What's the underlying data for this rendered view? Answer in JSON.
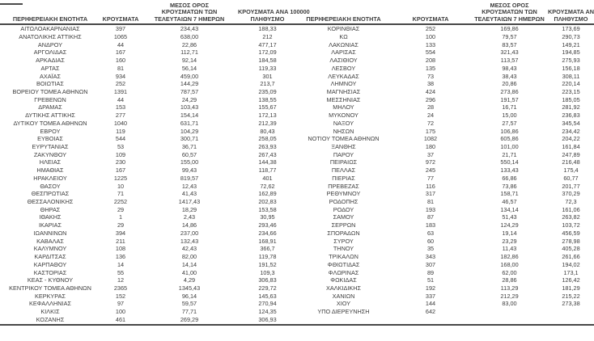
{
  "colors": {
    "text": "#3c3c3c",
    "rule": "#474747",
    "background": "#ffffff"
  },
  "table": {
    "headers": {
      "region": "ΠΕΡΙΦΕΡΕΙΑΚΗ ΕΝΟΤΗΤΑ",
      "cases": "ΚΡΟΥΣΜΑΤΑ",
      "avg7_l1": "ΜΕΣΟΣ ΟΡΟΣ",
      "avg7_l2": "ΚΡΟΥΣΜΑΤΩΝ ΤΩΝ",
      "avg7_l3": "ΤΕΛΕΥΤΑΙΩΝ 7 ΗΜΕΡΩΝ",
      "per100k_l1": "ΚΡΟΥΣΜΑΤΑ ΑΝΑ 100000",
      "per100k_l2": "ΠΛΗΘΥΣΜΟ"
    },
    "left_rows": [
      [
        "ΑΙΤΩΛΟΑΚΑΡΝΑΝΙΑΣ",
        "397",
        "234,43",
        "188,33"
      ],
      [
        "ΑΝΑΤΟΛΙΚΗΣ ΑΤΤΙΚΗΣ",
        "1065",
        "638,00",
        "212"
      ],
      [
        "ΑΝΔΡΟΥ",
        "44",
        "22,86",
        "477,17"
      ],
      [
        "ΑΡΓΟΛΙΔΑΣ",
        "167",
        "112,71",
        "172,09"
      ],
      [
        "ΑΡΚΑΔΙΑΣ",
        "160",
        "92,14",
        "184,58"
      ],
      [
        "ΑΡΤΑΣ",
        "81",
        "56,14",
        "119,33"
      ],
      [
        "ΑΧΑΪΑΣ",
        "934",
        "459,00",
        "301"
      ],
      [
        "ΒΟΙΩΤΙΑΣ",
        "252",
        "144,29",
        "213,7"
      ],
      [
        "ΒΟΡΕΙΟΥ ΤΟΜΕΑ ΑΘΗΝΩΝ",
        "1391",
        "787,57",
        "235,09"
      ],
      [
        "ΓΡΕΒΕΝΩΝ",
        "44",
        "24,29",
        "138,55"
      ],
      [
        "ΔΡΑΜΑΣ",
        "153",
        "103,43",
        "155,67"
      ],
      [
        "ΔΥΤΙΚΗΣ ΑΤΤΙΚΗΣ",
        "277",
        "154,14",
        "172,13"
      ],
      [
        "ΔΥΤΙΚΟΥ ΤΟΜΕΑ ΑΘΗΝΩΝ",
        "1040",
        "631,71",
        "212,39"
      ],
      [
        "ΕΒΡΟΥ",
        "119",
        "104,29",
        "80,43"
      ],
      [
        "ΕΥΒΟΙΑΣ",
        "544",
        "300,71",
        "258,05"
      ],
      [
        "ΕΥΡΥΤΑΝΙΑΣ",
        "53",
        "36,71",
        "263,93"
      ],
      [
        "ΖΑΚΥΝΘΟΥ",
        "109",
        "60,57",
        "267,43"
      ],
      [
        "ΗΛΕΙΑΣ",
        "230",
        "155,00",
        "144,38"
      ],
      [
        "ΗΜΑΘΙΑΣ",
        "167",
        "99,43",
        "118,77"
      ],
      [
        "ΗΡΑΚΛΕΙΟΥ",
        "1225",
        "819,57",
        "401"
      ],
      [
        "ΘΑΣΟΥ",
        "10",
        "12,43",
        "72,62"
      ],
      [
        "ΘΕΣΠΡΩΤΙΑΣ",
        "71",
        "41,43",
        "162,89"
      ],
      [
        "ΘΕΣΣΑΛΟΝΙΚΗΣ",
        "2252",
        "1417,43",
        "202,83"
      ],
      [
        "ΘΗΡΑΣ",
        "29",
        "18,29",
        "153,58"
      ],
      [
        "ΙΘΑΚΗΣ",
        "1",
        "2,43",
        "30,95"
      ],
      [
        "ΙΚΑΡΙΑΣ",
        "29",
        "14,86",
        "293,46"
      ],
      [
        "ΙΩΑΝΝΙΝΩΝ",
        "394",
        "237,00",
        "234,66"
      ],
      [
        "ΚΑΒΑΛΑΣ",
        "211",
        "132,43",
        "168,91"
      ],
      [
        "ΚΑΛΥΜΝΟΥ",
        "108",
        "42,43",
        "366,7"
      ],
      [
        "ΚΑΡΔΙΤΣΑΣ",
        "136",
        "82,00",
        "119,78"
      ],
      [
        "ΚΑΡΠΑΘΟΥ",
        "14",
        "14,14",
        "191,52"
      ],
      [
        "ΚΑΣΤΟΡΙΑΣ",
        "55",
        "41,00",
        "109,3"
      ],
      [
        "ΚΕΑΣ - ΚΥΘΝΟΥ",
        "12",
        "4,29",
        "306,83"
      ],
      [
        "ΚΕΝΤΡΙΚΟΥ ΤΟΜΕΑ ΑΘΗΝΩΝ",
        "2365",
        "1345,43",
        "229,72"
      ],
      [
        "ΚΕΡΚΥΡΑΣ",
        "152",
        "96,14",
        "145,63"
      ],
      [
        "ΚΕΦΑΛΛΗΝΙΑΣ",
        "97",
        "59,57",
        "270,94"
      ],
      [
        "ΚΙΛΚΙΣ",
        "100",
        "77,71",
        "124,35"
      ],
      [
        "ΚΟΖΑΝΗΣ",
        "461",
        "269,29",
        "306,93"
      ]
    ],
    "right_rows": [
      [
        "ΚΟΡΙΝΘΙΑΣ",
        "252",
        "169,86",
        "173,69"
      ],
      [
        "ΚΩ",
        "100",
        "79,57",
        "290,73"
      ],
      [
        "ΛΑΚΩΝΙΑΣ",
        "133",
        "83,57",
        "149,21"
      ],
      [
        "ΛΑΡΙΣΑΣ",
        "554",
        "321,43",
        "194,85"
      ],
      [
        "ΛΑΣΙΘΙΟΥ",
        "208",
        "113,57",
        "275,93"
      ],
      [
        "ΛΕΣΒΟΥ",
        "135",
        "98,43",
        "156,18"
      ],
      [
        "ΛΕΥΚΑΔΑΣ",
        "73",
        "38,43",
        "308,11"
      ],
      [
        "ΛΗΜΝΟΥ",
        "38",
        "20,86",
        "220,14"
      ],
      [
        "ΜΑΓΝΗΣΙΑΣ",
        "424",
        "273,86",
        "223,15"
      ],
      [
        "ΜΕΣΣΗΝΙΑΣ",
        "296",
        "191,57",
        "185,05"
      ],
      [
        "ΜΗΛΟΥ",
        "28",
        "16,71",
        "281,92"
      ],
      [
        "ΜΥΚΟΝΟΥ",
        "24",
        "15,00",
        "236,83"
      ],
      [
        "ΝΑΞΟΥ",
        "72",
        "27,57",
        "345,54"
      ],
      [
        "ΝΗΣΩΝ",
        "175",
        "106,86",
        "234,42"
      ],
      [
        "ΝΟΤΙΟΥ ΤΟΜΕΑ ΑΘΗΝΩΝ",
        "1082",
        "605,86",
        "204,22"
      ],
      [
        "ΞΑΝΘΗΣ",
        "180",
        "101,00",
        "161,84"
      ],
      [
        "ΠΑΡΟΥ",
        "37",
        "21,71",
        "247,89"
      ],
      [
        "ΠΕΙΡΑΙΩΣ",
        "972",
        "550,14",
        "216,48"
      ],
      [
        "ΠΕΛΛΑΣ",
        "245",
        "133,43",
        "175,4"
      ],
      [
        "ΠΙΕΡΙΑΣ",
        "77",
        "66,86",
        "60,77"
      ],
      [
        "ΠΡΕΒΕΖΑΣ",
        "116",
        "73,86",
        "201,77"
      ],
      [
        "ΡΕΘΥΜΝΟΥ",
        "317",
        "158,71",
        "370,29"
      ],
      [
        "ΡΟΔΟΠΗΣ",
        "81",
        "46,57",
        "72,3"
      ],
      [
        "ΡΟΔΟΥ",
        "193",
        "134,14",
        "161,06"
      ],
      [
        "ΣΑΜΟΥ",
        "87",
        "51,43",
        "263,82"
      ],
      [
        "ΣΕΡΡΩΝ",
        "183",
        "124,29",
        "103,72"
      ],
      [
        "ΣΠΟΡΑΔΩΝ",
        "63",
        "19,14",
        "456,59"
      ],
      [
        "ΣΥΡΟΥ",
        "60",
        "23,29",
        "278,98"
      ],
      [
        "ΤΗΝΟΥ",
        "35",
        "11,43",
        "405,28"
      ],
      [
        "ΤΡΙΚΑΛΩΝ",
        "343",
        "182,86",
        "261,66"
      ],
      [
        "ΦΘΙΩΤΙΔΑΣ",
        "307",
        "168,00",
        "194,02"
      ],
      [
        "ΦΛΩΡΙΝΑΣ",
        "89",
        "62,00",
        "173,1"
      ],
      [
        "ΦΩΚΙΔΑΣ",
        "51",
        "28,86",
        "126,42"
      ],
      [
        "ΧΑΛΚΙΔΙΚΗΣ",
        "192",
        "113,29",
        "181,29"
      ],
      [
        "ΧΑΝΙΩΝ",
        "337",
        "212,29",
        "215,22"
      ],
      [
        "ΧΙΟΥ",
        "144",
        "83,00",
        "273,38"
      ],
      [
        "ΥΠΟ ΔΙΕΡΕΥΝΗΣΗ",
        "642",
        "",
        ""
      ]
    ]
  }
}
